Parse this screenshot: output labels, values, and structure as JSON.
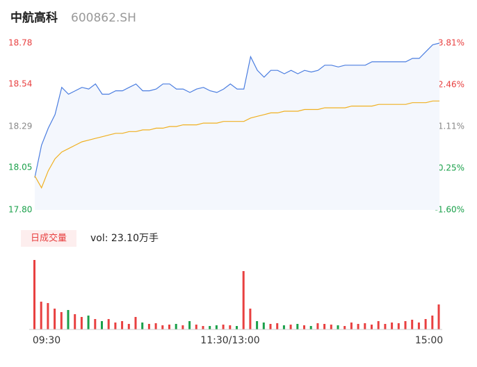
{
  "header": {
    "name": "中航高科",
    "code": "600862.SH"
  },
  "chart_data": [
    {
      "type": "line",
      "x": [
        0,
        4,
        8,
        12,
        16,
        20,
        24,
        28,
        32,
        36,
        40,
        44,
        48,
        52,
        56,
        60,
        64,
        68,
        72,
        76,
        80,
        84,
        88,
        92,
        96,
        100,
        104,
        108,
        112,
        116,
        120,
        124,
        128,
        132,
        136,
        140,
        144,
        148,
        152,
        156,
        160,
        164,
        168,
        172,
        176,
        180,
        184,
        188,
        192,
        196,
        200,
        204,
        208,
        212,
        216,
        220,
        224,
        228,
        232,
        236,
        240
      ],
      "xlim": [
        0,
        240
      ],
      "series": [
        {
          "color": "#4a7de0",
          "values": [
            17.99,
            18.18,
            18.28,
            18.36,
            18.52,
            18.48,
            18.5,
            18.52,
            18.51,
            18.54,
            18.48,
            18.48,
            18.5,
            18.5,
            18.52,
            18.54,
            18.5,
            18.5,
            18.51,
            18.54,
            18.54,
            18.51,
            18.51,
            18.49,
            18.51,
            18.52,
            18.5,
            18.49,
            18.51,
            18.54,
            18.51,
            18.51,
            18.7,
            18.62,
            18.58,
            18.62,
            18.62,
            18.6,
            18.62,
            18.6,
            18.62,
            18.61,
            18.62,
            18.65,
            18.65,
            18.64,
            18.65,
            18.65,
            18.65,
            18.65,
            18.67,
            18.67,
            18.67,
            18.67,
            18.67,
            18.67,
            18.69,
            18.69,
            18.73,
            18.77,
            18.78
          ]
        },
        {
          "color": "#f0b020",
          "values": [
            18.0,
            17.93,
            18.03,
            18.1,
            18.14,
            18.16,
            18.18,
            18.2,
            18.21,
            18.22,
            18.23,
            18.24,
            18.25,
            18.25,
            18.26,
            18.26,
            18.27,
            18.27,
            18.28,
            18.28,
            18.29,
            18.29,
            18.3,
            18.3,
            18.3,
            18.31,
            18.31,
            18.31,
            18.32,
            18.32,
            18.32,
            18.32,
            18.34,
            18.35,
            18.36,
            18.37,
            18.37,
            18.38,
            18.38,
            18.38,
            18.39,
            18.39,
            18.39,
            18.4,
            18.4,
            18.4,
            18.4,
            18.41,
            18.41,
            18.41,
            18.41,
            18.42,
            18.42,
            18.42,
            18.42,
            18.42,
            18.43,
            18.43,
            18.43,
            18.44,
            18.44
          ]
        }
      ],
      "ylim": [
        17.8,
        18.78
      ],
      "yticks": [
        18.78,
        18.54,
        18.29,
        18.05,
        {
          "value": 17.8,
          "label": "17.80"
        }
      ],
      "y2lim": [
        -1.6,
        3.81
      ],
      "y2ticks": [
        {
          "value": 3.81,
          "label": "3.81%"
        },
        {
          "value": 2.46,
          "label": "2.46%"
        },
        {
          "value": 1.11,
          "label": "1.11%"
        },
        {
          "value": -0.25,
          "label": "-0.25%"
        },
        {
          "value": -1.6,
          "label": "-1.60%"
        }
      ]
    },
    {
      "type": "bar",
      "title": "日成交量",
      "subtitle": "vol: 23.10万手",
      "x": [
        0,
        4,
        8,
        12,
        16,
        20,
        24,
        28,
        32,
        36,
        40,
        44,
        48,
        52,
        56,
        60,
        64,
        68,
        72,
        76,
        80,
        84,
        88,
        92,
        96,
        100,
        104,
        108,
        112,
        116,
        120,
        124,
        128,
        132,
        136,
        140,
        144,
        148,
        152,
        156,
        160,
        164,
        168,
        172,
        176,
        180,
        184,
        188,
        192,
        196,
        200,
        204,
        208,
        212,
        216,
        220,
        224,
        228,
        232,
        236,
        240
      ],
      "values": [
        100,
        40,
        38,
        30,
        25,
        28,
        22,
        18,
        20,
        15,
        12,
        15,
        10,
        12,
        8,
        18,
        10,
        8,
        9,
        6,
        7,
        8,
        6,
        12,
        7,
        5,
        5,
        6,
        7,
        6,
        5,
        84,
        30,
        12,
        10,
        8,
        9,
        6,
        7,
        8,
        6,
        5,
        9,
        8,
        7,
        6,
        5,
        10,
        8,
        9,
        7,
        12,
        8,
        10,
        9,
        12,
        14,
        10,
        15,
        20,
        36
      ],
      "colors": {
        "up": "#e84040",
        "down": "#1aa04a"
      },
      "ylim": [
        0,
        100
      ],
      "xlim": [
        0,
        240
      ],
      "xticks": [
        {
          "value": 0,
          "label": "09:30"
        },
        {
          "value": 120,
          "label": "11:30/13:00"
        },
        {
          "value": 240,
          "label": "15:00"
        }
      ]
    }
  ]
}
